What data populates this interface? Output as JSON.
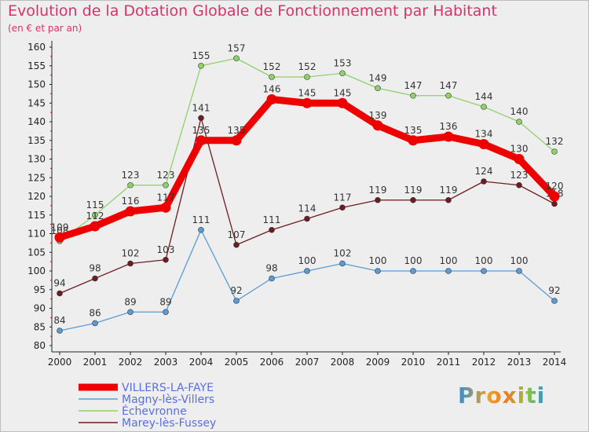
{
  "chart_data": {
    "type": "line",
    "title": "Evolution de la Dotation Globale de Fonctionnement par Habitant",
    "subtitle": "(en € et par an)",
    "xlabel": "",
    "ylabel": "",
    "ylim": [
      80,
      160
    ],
    "yticks": [
      80,
      85,
      90,
      95,
      100,
      105,
      110,
      115,
      120,
      125,
      130,
      135,
      140,
      145,
      150,
      155,
      160
    ],
    "categories": [
      "2000",
      "2001",
      "2002",
      "2003",
      "2004",
      "2005",
      "2006",
      "2007",
      "2008",
      "2009",
      "2010",
      "2011",
      "2012",
      "2013",
      "2014"
    ],
    "series": [
      {
        "name": "Magny-lès-Villers",
        "color": "#5b9bd5",
        "values": [
          84,
          86,
          89,
          89,
          111,
          92,
          98,
          100,
          102,
          100,
          100,
          100,
          100,
          100,
          92
        ]
      },
      {
        "name": "Échevronne",
        "color": "#8fd16a",
        "values": [
          108,
          115,
          123,
          123,
          155,
          157,
          152,
          152,
          153,
          149,
          147,
          147,
          144,
          140,
          132
        ]
      },
      {
        "name": "Marey-lès-Fussey",
        "color": "#6b1d22",
        "values": [
          94,
          98,
          102,
          103,
          141,
          107,
          111,
          114,
          117,
          119,
          119,
          119,
          124,
          123,
          118
        ]
      },
      {
        "name": "VILLERS-LA-FAYE",
        "color": "#ee0000",
        "values": [
          109,
          112,
          116,
          117,
          135,
          135,
          146,
          145,
          145,
          139,
          135,
          136,
          134,
          130,
          120
        ]
      }
    ],
    "legend": [
      "VILLERS-LA-FAYE",
      "Magny-lès-Villers",
      "Échevronne",
      "Marey-lès-Fussey"
    ],
    "legend_position": "bottom-left",
    "grid": false
  },
  "logo_text": "Proxiti"
}
